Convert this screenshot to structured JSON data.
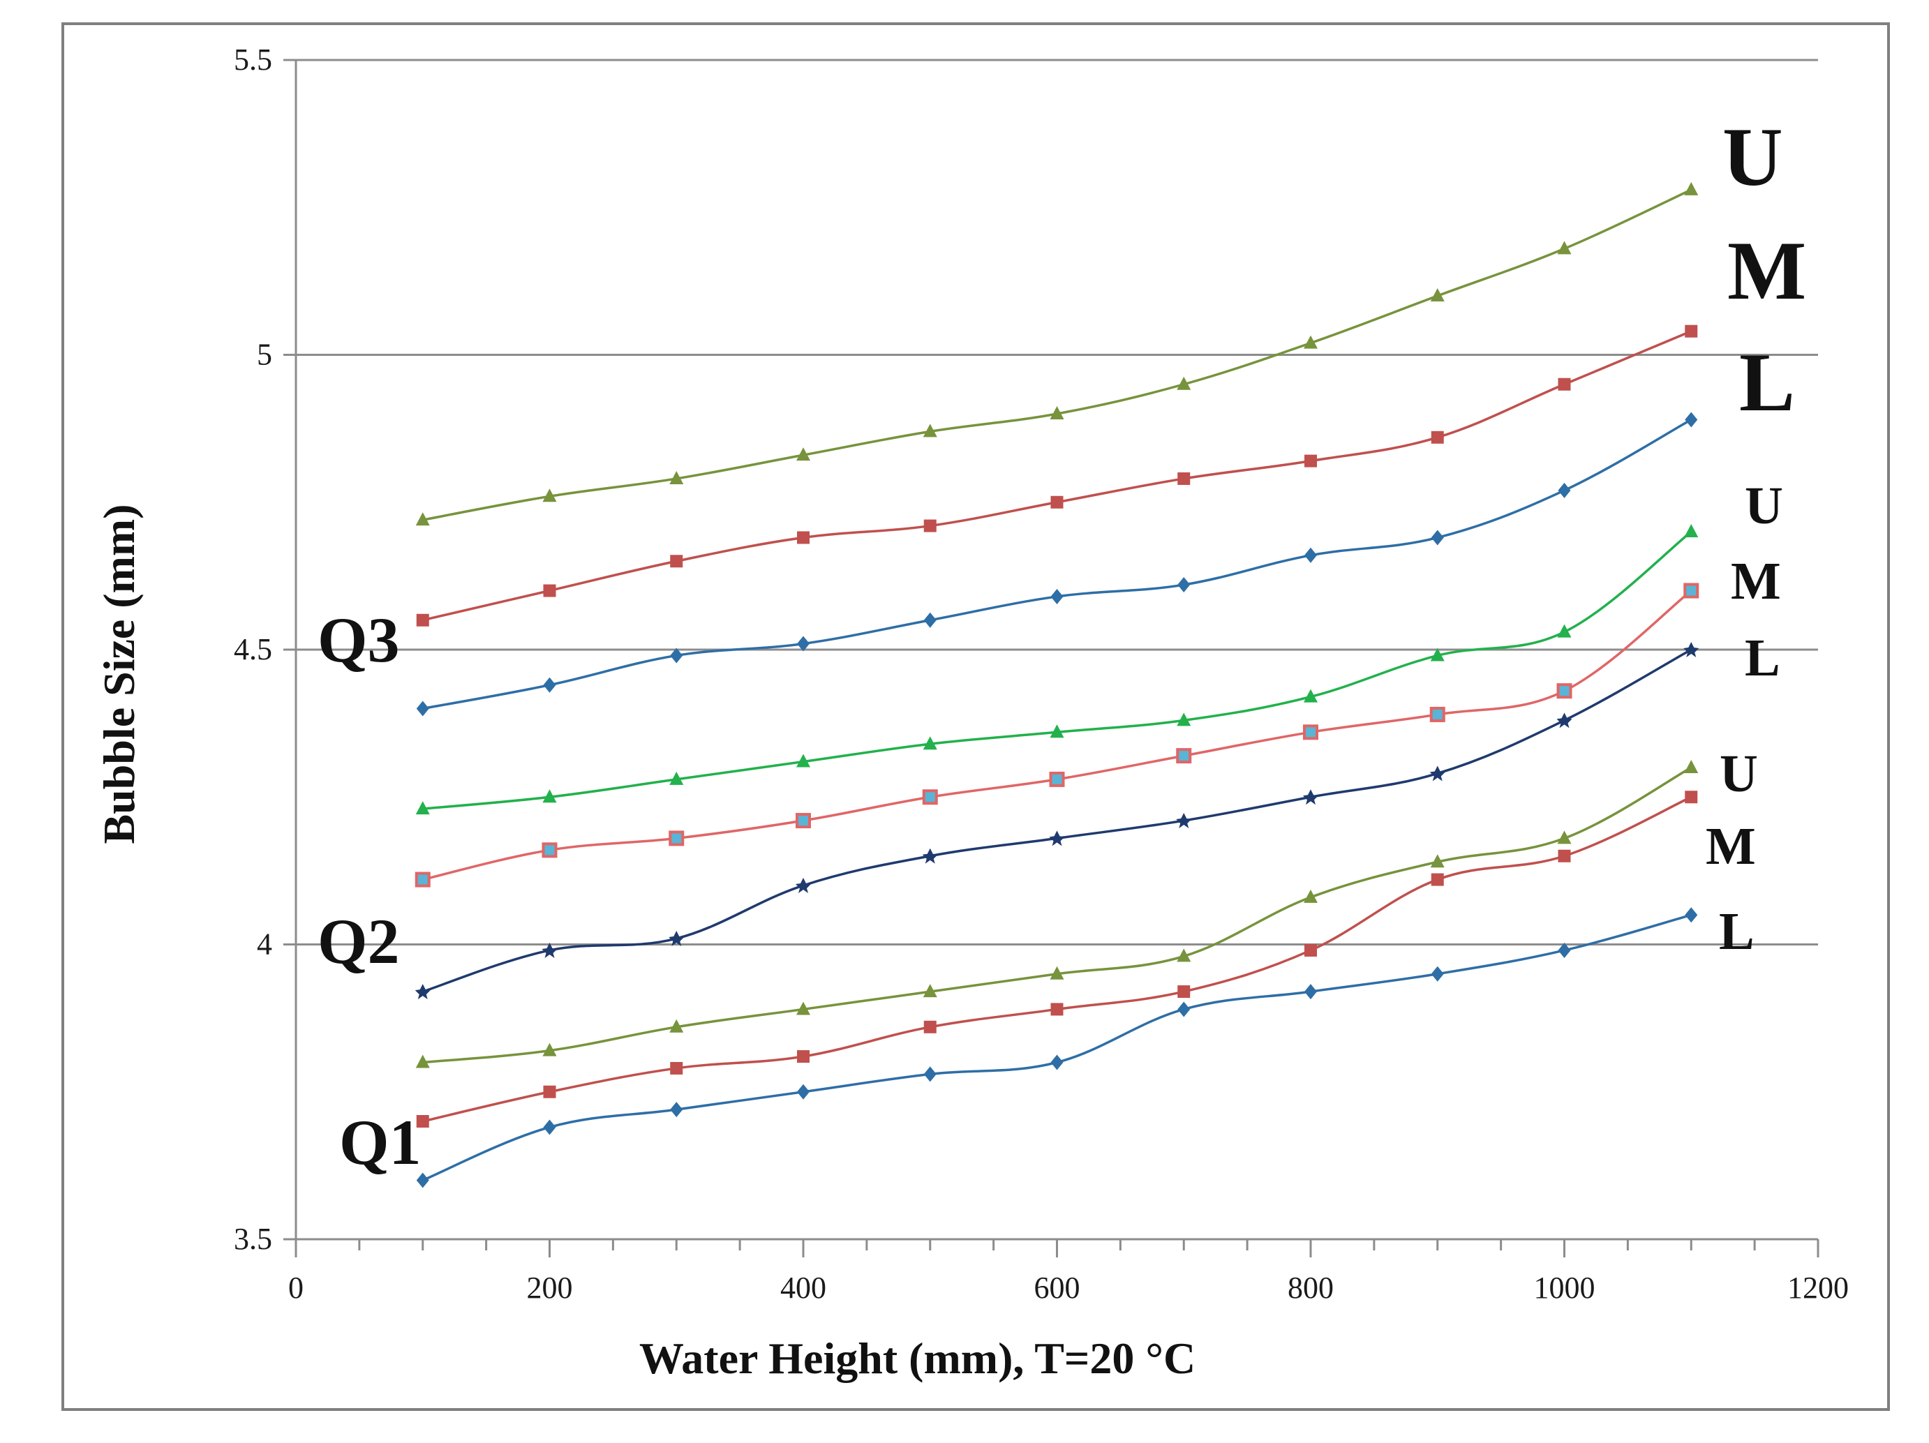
{
  "chart_data": {
    "type": "line",
    "title": "",
    "xlabel": "Water Height (mm), T=20 °C",
    "ylabel": "Bubble Size (mm)",
    "xlim": [
      0,
      1200
    ],
    "ylim": [
      3.5,
      5.5
    ],
    "xticks": [
      "0",
      "200",
      "400",
      "600",
      "800",
      "1000",
      "1200"
    ],
    "yticks": [
      "3.5",
      "4",
      "4.5",
      "5",
      "5.5"
    ],
    "grid": true,
    "x": [
      100,
      200,
      300,
      400,
      500,
      600,
      700,
      800,
      900,
      1000,
      1100
    ],
    "series": [
      {
        "name": "Q3 U",
        "group": "Q3",
        "level": "U",
        "color": "#77933c",
        "marker": "triangle",
        "values": [
          4.72,
          4.76,
          4.79,
          4.83,
          4.87,
          4.9,
          4.95,
          5.02,
          5.1,
          5.18,
          5.28
        ]
      },
      {
        "name": "Q3 M",
        "group": "Q3",
        "level": "M",
        "color": "#c0504d",
        "marker": "square",
        "values": [
          4.55,
          4.6,
          4.65,
          4.69,
          4.71,
          4.75,
          4.79,
          4.82,
          4.86,
          4.95,
          5.04
        ]
      },
      {
        "name": "Q3 L",
        "group": "Q3",
        "level": "L",
        "color": "#2e6ea6",
        "marker": "diamond",
        "values": [
          4.4,
          4.44,
          4.49,
          4.51,
          4.55,
          4.59,
          4.61,
          4.66,
          4.69,
          4.77,
          4.89
        ]
      },
      {
        "name": "Q2 U",
        "group": "Q2",
        "level": "U",
        "color": "#22b14c",
        "marker": "triangle",
        "values": [
          4.23,
          4.25,
          4.28,
          4.31,
          4.34,
          4.36,
          4.38,
          4.42,
          4.49,
          4.53,
          4.7
        ]
      },
      {
        "name": "Q2 M",
        "group": "Q2",
        "level": "M",
        "color": "#e06666",
        "marker": "square-open",
        "values": [
          4.11,
          4.16,
          4.18,
          4.21,
          4.25,
          4.28,
          4.32,
          4.36,
          4.39,
          4.43,
          4.6
        ]
      },
      {
        "name": "Q2 L",
        "group": "Q2",
        "level": "L",
        "color": "#1f3a6e",
        "marker": "star",
        "values": [
          3.92,
          3.99,
          4.01,
          4.1,
          4.15,
          4.18,
          4.21,
          4.25,
          4.29,
          4.38,
          4.5
        ]
      },
      {
        "name": "Q1 U",
        "group": "Q1",
        "level": "U",
        "color": "#77933c",
        "marker": "triangle",
        "values": [
          3.8,
          3.82,
          3.86,
          3.89,
          3.92,
          3.95,
          3.98,
          4.08,
          4.14,
          4.18,
          4.3
        ]
      },
      {
        "name": "Q1 M",
        "group": "Q1",
        "level": "M",
        "color": "#c0504d",
        "marker": "square",
        "values": [
          3.7,
          3.75,
          3.79,
          3.81,
          3.86,
          3.89,
          3.92,
          3.99,
          4.11,
          4.15,
          4.25
        ]
      },
      {
        "name": "Q1 L",
        "group": "Q1",
        "level": "L",
        "color": "#2e6ea6",
        "marker": "diamond",
        "values": [
          3.6,
          3.69,
          3.72,
          3.75,
          3.78,
          3.8,
          3.89,
          3.92,
          3.95,
          3.99,
          4.05
        ]
      }
    ],
    "annotations": [
      {
        "name": "q3",
        "text": "Q3"
      },
      {
        "name": "q2",
        "text": "Q2"
      },
      {
        "name": "q1",
        "text": "Q1"
      },
      {
        "name": "q3-u",
        "text": "U"
      },
      {
        "name": "q3-m",
        "text": "M"
      },
      {
        "name": "q3-l",
        "text": "L"
      },
      {
        "name": "q2-u",
        "text": "U"
      },
      {
        "name": "q2-m",
        "text": "M"
      },
      {
        "name": "q2-l",
        "text": "L"
      },
      {
        "name": "q1-u",
        "text": "U"
      },
      {
        "name": "q1-m",
        "text": "M"
      },
      {
        "name": "q1-l",
        "text": "L"
      }
    ]
  }
}
